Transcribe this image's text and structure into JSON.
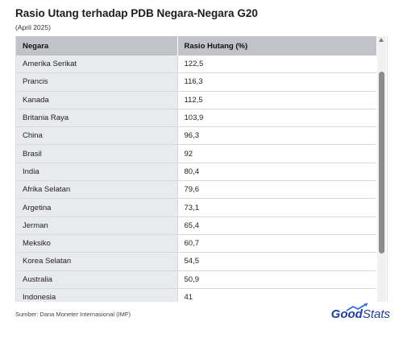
{
  "title": "Rasio Utang terhadap PDB Negara-Negara G20",
  "subtitle": "(April 2025)",
  "table": {
    "headers": [
      "Negara",
      "Rasio Hutang (%)"
    ],
    "rows": [
      {
        "country": "Amerika Serikat",
        "value": "122,5"
      },
      {
        "country": "Prancis",
        "value": "116,3"
      },
      {
        "country": "Kanada",
        "value": "112,5"
      },
      {
        "country": "Britania Raya",
        "value": "103,9"
      },
      {
        "country": "China",
        "value": "96,3"
      },
      {
        "country": "Brasil",
        "value": "92"
      },
      {
        "country": "India",
        "value": "80,4"
      },
      {
        "country": "Afrika Selatan",
        "value": "79,6"
      },
      {
        "country": "Argetina",
        "value": "73,1"
      },
      {
        "country": "Jerman",
        "value": "65,4"
      },
      {
        "country": "Meksiko",
        "value": "60,7"
      },
      {
        "country": "Korea Selatan",
        "value": "54,5"
      },
      {
        "country": "Australia",
        "value": "50,9"
      },
      {
        "country": "Indonesia",
        "value": "41"
      }
    ]
  },
  "source": "Sumber: Dana Moneter Internasional (IMF)",
  "logo": {
    "part1": "Good",
    "part2": "Stats"
  },
  "colors": {
    "header_bg": "#c2c3c8",
    "country_col_bg": "#e9eaee",
    "logo_blue": "#1f3f99",
    "logo_arrow": "#2f6fe0"
  },
  "icons": {
    "scroll_up": "triangle-up-icon",
    "logo_mark": "trend-arrow-icon"
  }
}
